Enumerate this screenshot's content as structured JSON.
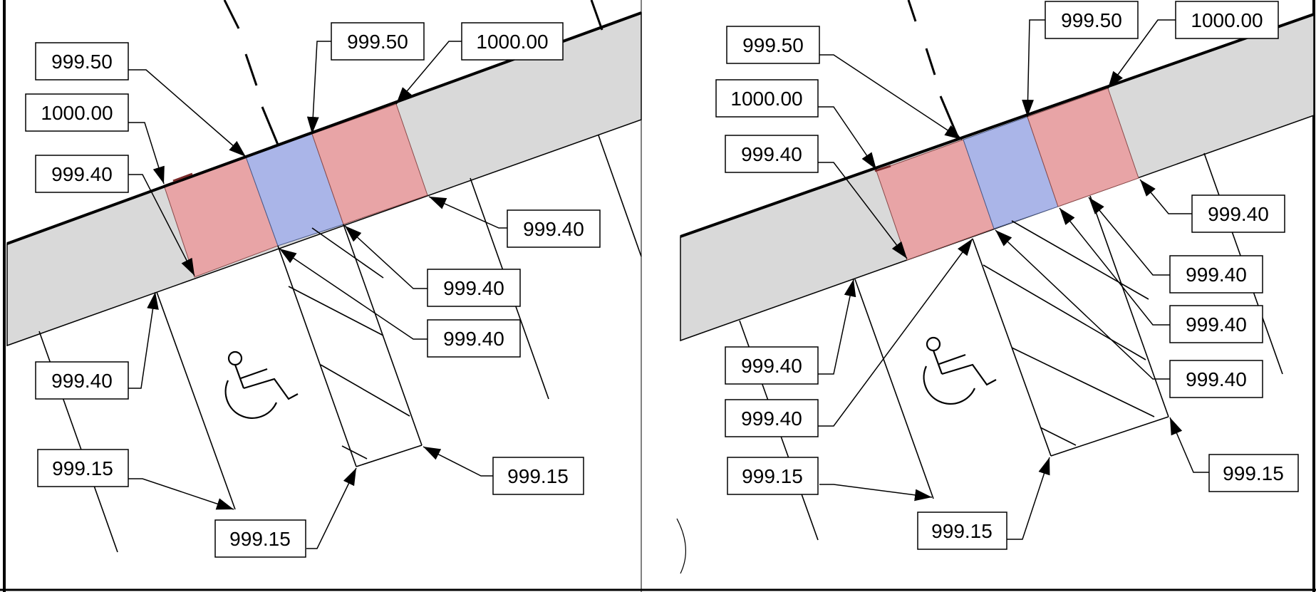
{
  "left_panel": {
    "callouts": [
      "999.50",
      "1000.00",
      "999.40",
      "999.50",
      "1000.00",
      "999.40",
      "999.40",
      "999.40",
      "999.40",
      "999.15",
      "999.15",
      "999.15"
    ]
  },
  "right_panel": {
    "callouts": [
      "999.50",
      "1000.00",
      "999.40",
      "999.50",
      "1000.00",
      "999.40",
      "999.40",
      "999.40",
      "999.40",
      "999.40",
      "999.40",
      "999.15",
      "999.15",
      "999.15"
    ]
  },
  "colors": {
    "sidewalk": "#d9d9d9",
    "ramp_flare": "#e8a4a6",
    "ramp_landing": "#aab5e8",
    "line": "#000000"
  },
  "icons": [
    "accessible-parking-icon"
  ]
}
